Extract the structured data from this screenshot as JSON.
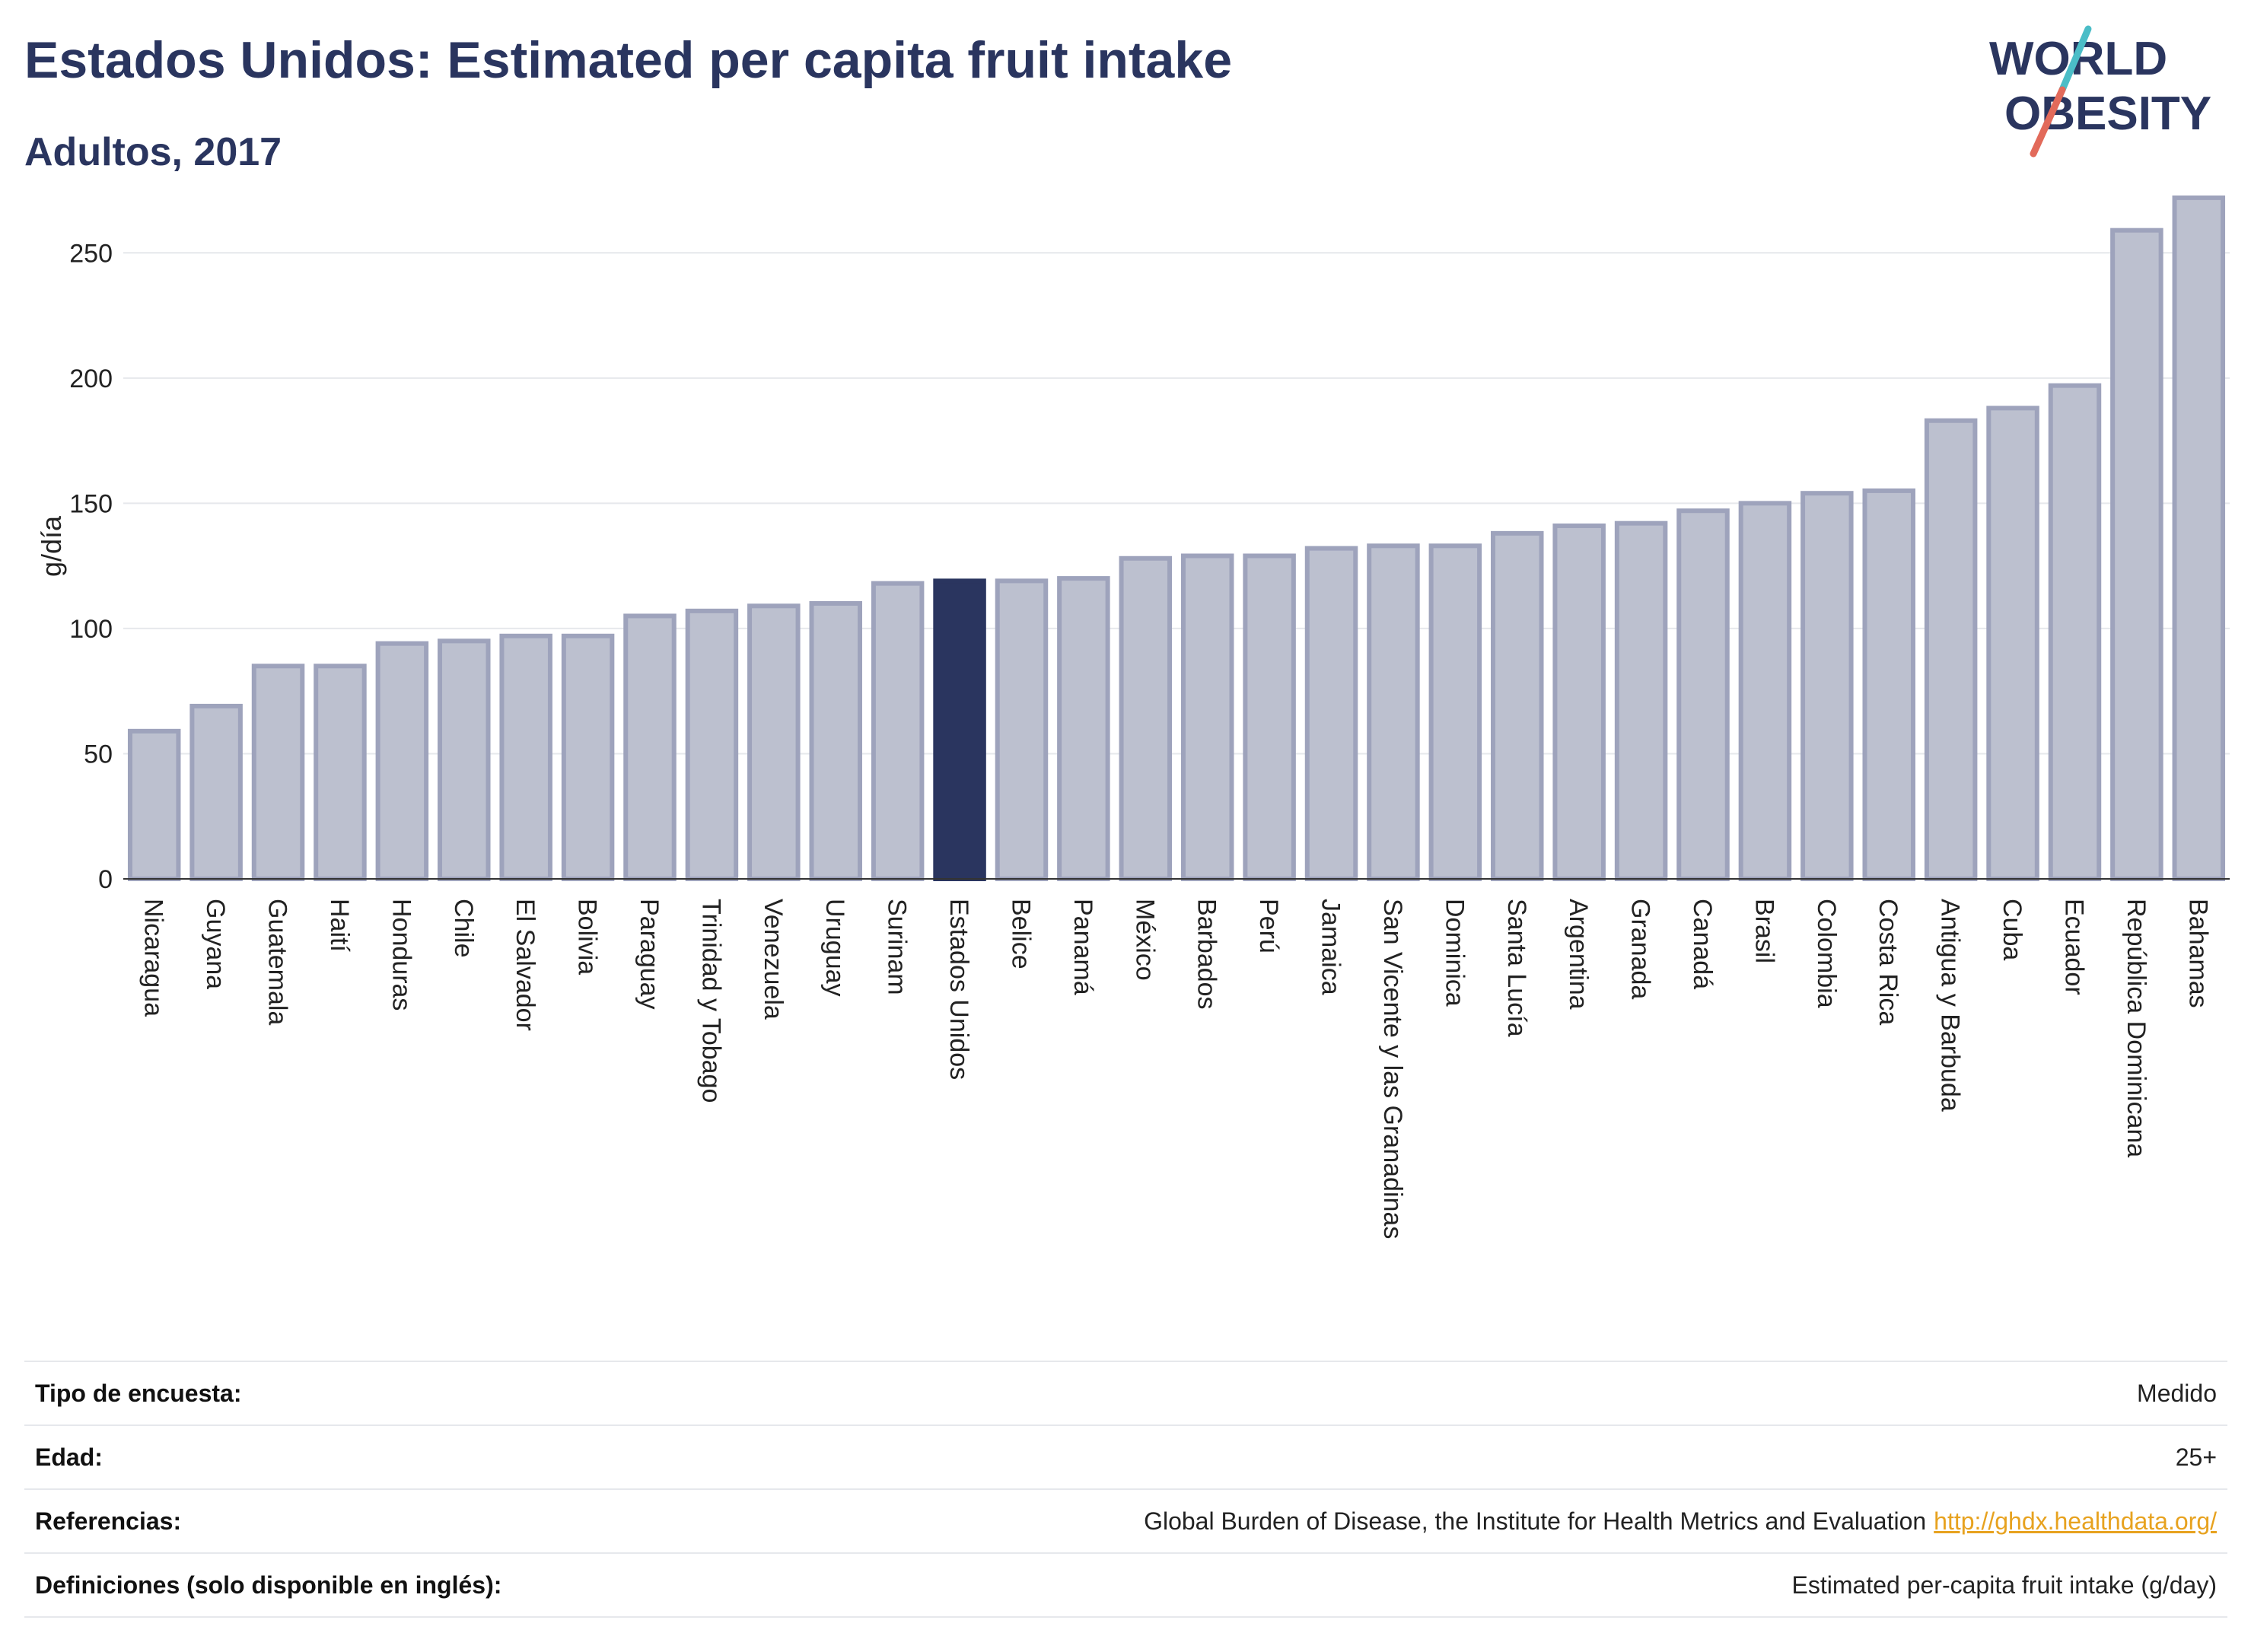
{
  "header": {
    "title": "Estados Unidos: Estimated per capita fruit intake",
    "subtitle": "Adultos, 2017"
  },
  "logo": {
    "line1": "WORLD",
    "line2": "OBESITY",
    "slash_colors": [
      "#4bbdc7",
      "#e26a5a"
    ]
  },
  "colors": {
    "highlight": "#2a355f",
    "bar_fill": "#bcc0cf",
    "bar_stroke": "#9ea3bc",
    "grid": "#e6e8ec",
    "text": "#222222"
  },
  "chart_data": {
    "type": "bar",
    "ylabel": "g/día",
    "ylim": [
      0,
      275
    ],
    "yticks": [
      0,
      50,
      100,
      150,
      200,
      250
    ],
    "grid": true,
    "highlight": "Estados Unidos",
    "categories": [
      "Nicaragua",
      "Guyana",
      "Guatemala",
      "Haití",
      "Honduras",
      "Chile",
      "El Salvador",
      "Bolivia",
      "Paraguay",
      "Trinidad y Tobago",
      "Venezuela",
      "Uruguay",
      "Surinam",
      "Estados Unidos",
      "Belice",
      "Panamá",
      "México",
      "Barbados",
      "Perú",
      "Jamaica",
      "San Vicente y las Granadinas",
      "Dominica",
      "Santa Lucía",
      "Argentina",
      "Granada",
      "Canadá",
      "Brasil",
      "Colombia",
      "Costa Rica",
      "Antigua y Barbuda",
      "Cuba",
      "Ecuador",
      "República Dominicana",
      "Bahamas"
    ],
    "values": [
      59,
      69,
      85,
      85,
      94,
      95,
      97,
      97,
      105,
      107,
      109,
      110,
      118,
      119,
      119,
      120,
      128,
      129,
      129,
      132,
      133,
      133,
      138,
      141,
      142,
      147,
      150,
      154,
      155,
      183,
      188,
      197,
      259,
      272
    ]
  },
  "info": [
    {
      "key": "Tipo de encuesta:",
      "value": "Medido"
    },
    {
      "key": "Edad:",
      "value": "25+"
    },
    {
      "key": "Referencias:",
      "value": "Global Burden of Disease, the Institute for Health Metrics and Evaluation",
      "link": "http://ghdx.healthdata.org/"
    },
    {
      "key": "Definiciones (solo disponible en inglés):",
      "value": "Estimated per-capita fruit intake (g/day)"
    }
  ]
}
